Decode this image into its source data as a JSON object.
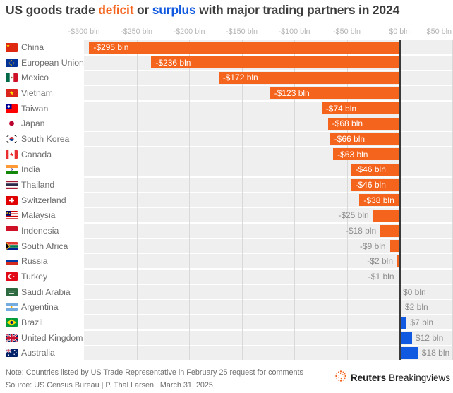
{
  "title": {
    "part1": "US goods trade ",
    "deficit_word": "deficit",
    "part2": " or ",
    "surplus_word": "surplus",
    "part3": " with major trading partners in 2024"
  },
  "colors": {
    "deficit": "#F4641D",
    "surplus": "#1159E0",
    "band": "#EFEFEF",
    "grid": "#D9D9D9",
    "zero_line": "#3A3A3A",
    "axis_label": "#B5B5B5",
    "country_label": "#6E6E6E",
    "value_outside": "#8C8C8C",
    "value_inside": "#FFFFFF"
  },
  "chart_data": {
    "type": "bar",
    "orientation": "horizontal",
    "title": "US goods trade deficit or surplus with major trading partners in 2024",
    "unit": "$ bln",
    "xlim": [
      -300,
      51
    ],
    "grid": true,
    "x_ticks": [
      {
        "label": "-$300 bln",
        "value": -300
      },
      {
        "label": "-$250 bln",
        "value": -250
      },
      {
        "label": "-$200 bln",
        "value": -200
      },
      {
        "label": "-$150 bln",
        "value": -150
      },
      {
        "label": "-$100 bln",
        "value": -100
      },
      {
        "label": "-$50 bln",
        "value": -50
      },
      {
        "label": "$0 bln",
        "value": 0
      },
      {
        "label": "$50 bln",
        "value": 50
      }
    ],
    "categories": [
      "China",
      "European Union",
      "Mexico",
      "Vietnam",
      "Taiwan",
      "Japan",
      "South Korea",
      "Canada",
      "India",
      "Thailand",
      "Switzerland",
      "Malaysia",
      "Indonesia",
      "South Africa",
      "Russia",
      "Turkey",
      "Saudi Arabia",
      "Argentina",
      "Brazil",
      "United Kingdom",
      "Australia"
    ],
    "values": [
      -295,
      -236,
      -172,
      -123,
      -74,
      -68,
      -66,
      -63,
      -46,
      -46,
      -38,
      -25,
      -18,
      -9,
      -2,
      -1,
      0,
      2,
      7,
      12,
      18
    ],
    "rows": [
      {
        "country": "China",
        "flag": "china-flag-icon",
        "value": -295,
        "label": "-$295 bln",
        "kind": "deficit"
      },
      {
        "country": "European Union",
        "flag": "eu-flag-icon",
        "value": -236,
        "label": "-$236 bln",
        "kind": "deficit"
      },
      {
        "country": "Mexico",
        "flag": "mexico-flag-icon",
        "value": -172,
        "label": "-$172 bln",
        "kind": "deficit"
      },
      {
        "country": "Vietnam",
        "flag": "vietnam-flag-icon",
        "value": -123,
        "label": "-$123 bln",
        "kind": "deficit"
      },
      {
        "country": "Taiwan",
        "flag": "taiwan-flag-icon",
        "value": -74,
        "label": "-$74 bln",
        "kind": "deficit"
      },
      {
        "country": "Japan",
        "flag": "japan-flag-icon",
        "value": -68,
        "label": "-$68 bln",
        "kind": "deficit"
      },
      {
        "country": "South Korea",
        "flag": "south-korea-flag-icon",
        "value": -66,
        "label": "-$66 bln",
        "kind": "deficit"
      },
      {
        "country": "Canada",
        "flag": "canada-flag-icon",
        "value": -63,
        "label": "-$63 bln",
        "kind": "deficit"
      },
      {
        "country": "India",
        "flag": "india-flag-icon",
        "value": -46,
        "label": "-$46 bln",
        "kind": "deficit"
      },
      {
        "country": "Thailand",
        "flag": "thailand-flag-icon",
        "value": -46,
        "label": "-$46 bln",
        "kind": "deficit"
      },
      {
        "country": "Switzerland",
        "flag": "switzerland-flag-icon",
        "value": -38,
        "label": "-$38 bln",
        "kind": "deficit"
      },
      {
        "country": "Malaysia",
        "flag": "malaysia-flag-icon",
        "value": -25,
        "label": "-$25 bln",
        "kind": "deficit"
      },
      {
        "country": "Indonesia",
        "flag": "indonesia-flag-icon",
        "value": -18,
        "label": "-$18 bln",
        "kind": "deficit"
      },
      {
        "country": "South Africa",
        "flag": "south-africa-flag-icon",
        "value": -9,
        "label": "-$9 bln",
        "kind": "deficit"
      },
      {
        "country": "Russia",
        "flag": "russia-flag-icon",
        "value": -2,
        "label": "-$2 bln",
        "kind": "deficit"
      },
      {
        "country": "Turkey",
        "flag": "turkey-flag-icon",
        "value": -1,
        "label": "-$1 bln",
        "kind": "deficit"
      },
      {
        "country": "Saudi Arabia",
        "flag": "saudi-arabia-flag-icon",
        "value": 0,
        "label": "$0 bln",
        "kind": "surplus"
      },
      {
        "country": "Argentina",
        "flag": "argentina-flag-icon",
        "value": 2,
        "label": "$2 bln",
        "kind": "surplus"
      },
      {
        "country": "Brazil",
        "flag": "brazil-flag-icon",
        "value": 7,
        "label": "$7 bln",
        "kind": "surplus"
      },
      {
        "country": "United Kingdom",
        "flag": "uk-flag-icon",
        "value": 12,
        "label": "$12 bln",
        "kind": "surplus"
      },
      {
        "country": "Australia",
        "flag": "australia-flag-icon",
        "value": 18,
        "label": "$18 bln",
        "kind": "surplus"
      }
    ]
  },
  "footer": {
    "note": "Note: Countries listed by US Trade Representative in February 25 request for comments",
    "source": "Source: US Census Bureau | P. Thal Larsen | March 31, 2025",
    "brand_bold": "Reuters",
    "brand_regular": "Breakingviews",
    "brand_icon_color": "#F4641D"
  }
}
